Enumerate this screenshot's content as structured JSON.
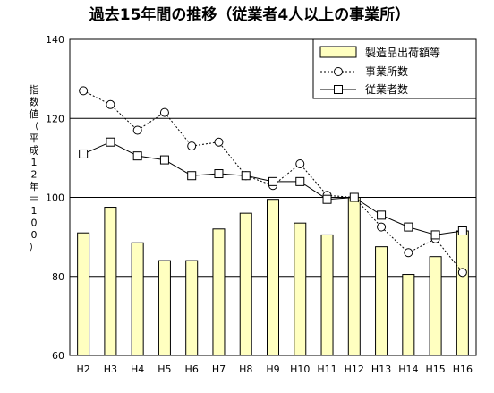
{
  "chart_data": {
    "type": "bar",
    "title": "過去15年間の推移（従業者4人以上の事業所）",
    "ylabel": "指数値（平成12年＝100）",
    "xlabel": "",
    "ylim": [
      60,
      140
    ],
    "yticks": [
      60,
      80,
      100,
      120,
      140
    ],
    "grid": true,
    "legend_position": "top-right",
    "categories": [
      "H2",
      "H3",
      "H4",
      "H5",
      "H6",
      "H7",
      "H8",
      "H9",
      "H10",
      "H11",
      "H12",
      "H13",
      "H14",
      "H15",
      "H16"
    ],
    "series": [
      {
        "name": "製造品出荷額等",
        "type": "bar",
        "color": "#ffffc0",
        "values": [
          91,
          97.5,
          88.5,
          84,
          84,
          92,
          96,
          99.5,
          93.5,
          90.5,
          100,
          87.5,
          80.5,
          85,
          91.5
        ]
      },
      {
        "name": "事業所数",
        "type": "line",
        "style": "dotted",
        "marker": "circle",
        "values": [
          127,
          123.5,
          117,
          121.5,
          113,
          114,
          105.5,
          103,
          108.5,
          100.5,
          100,
          92.5,
          86,
          89.5,
          81
        ]
      },
      {
        "name": "従業者数",
        "type": "line",
        "style": "solid",
        "marker": "square",
        "values": [
          111,
          114,
          110.5,
          109.5,
          105.5,
          106,
          105.5,
          104,
          104,
          99.5,
          100,
          95.5,
          92.5,
          90.5,
          91.5
        ]
      }
    ]
  }
}
